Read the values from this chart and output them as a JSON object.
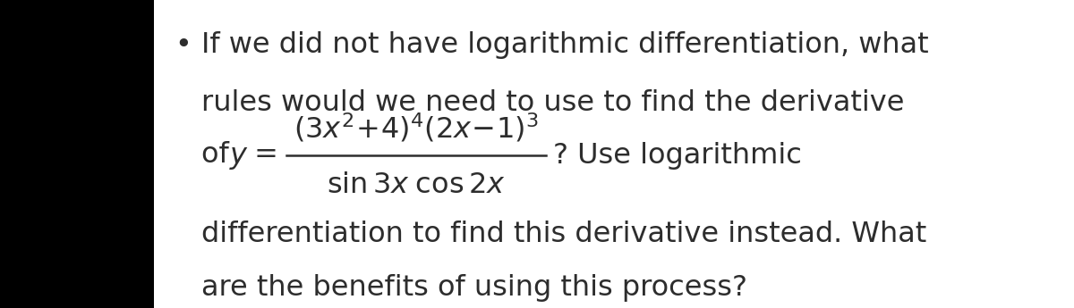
{
  "background_color": "#ffffff",
  "text_color": "#2d2d2d",
  "left_bar_color": "#000000",
  "bullet": "•",
  "line1": "If we did not have logarithmic differentiation, what",
  "line2": "rules would we need to use to find the derivative",
  "line3_prefix": "of ",
  "line3_y_label": "y",
  "line3_equals": " = ",
  "line3_suffix": "? Use logarithmic",
  "line4": "differentiation to find this derivative instead. What",
  "line5": "are the benefits of using this process?",
  "fontsize": 23,
  "fig_width": 12.0,
  "fig_height": 3.45,
  "dpi": 100
}
